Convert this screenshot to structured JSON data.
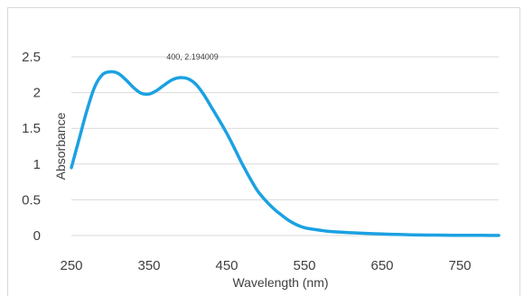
{
  "chart_data": {
    "type": "line",
    "title": "",
    "xlabel": "Wavelength (nm)",
    "ylabel": "Absorbance",
    "xlim": [
      250,
      800
    ],
    "ylim": [
      0,
      2.5
    ],
    "xticks": [
      250,
      350,
      450,
      550,
      650,
      750
    ],
    "yticks": [
      0,
      0.5,
      1,
      1.5,
      2,
      2.5
    ],
    "xtick_labels": [
      "250",
      "350",
      "450",
      "550",
      "650",
      "750"
    ],
    "ytick_labels": [
      "0",
      "0.5",
      "1",
      "1.5",
      "2",
      "2.5"
    ],
    "grid": "horizontal",
    "legend": "none",
    "annotation": {
      "text": "400, 2.194009",
      "x": 400,
      "y": 2.194009
    },
    "series": [
      {
        "color": "#1ba1e2",
        "x": [
          250,
          260,
          270,
          280,
          290,
          300,
          310,
          320,
          330,
          340,
          350,
          360,
          370,
          380,
          390,
          400,
          410,
          420,
          430,
          440,
          450,
          460,
          470,
          480,
          490,
          500,
          510,
          520,
          530,
          540,
          550,
          560,
          570,
          580,
          600,
          620,
          640,
          660,
          680,
          700,
          720,
          740,
          760,
          780,
          800
        ],
        "y": [
          0.95,
          1.35,
          1.75,
          2.08,
          2.25,
          2.29,
          2.27,
          2.18,
          2.07,
          1.99,
          1.98,
          2.03,
          2.11,
          2.18,
          2.21,
          2.194,
          2.12,
          1.98,
          1.8,
          1.62,
          1.43,
          1.22,
          1.0,
          0.8,
          0.62,
          0.49,
          0.38,
          0.29,
          0.21,
          0.15,
          0.11,
          0.09,
          0.075,
          0.06,
          0.045,
          0.035,
          0.025,
          0.018,
          0.012,
          0.008,
          0.006,
          0.004,
          0.003,
          0.002,
          0.001
        ]
      }
    ]
  }
}
